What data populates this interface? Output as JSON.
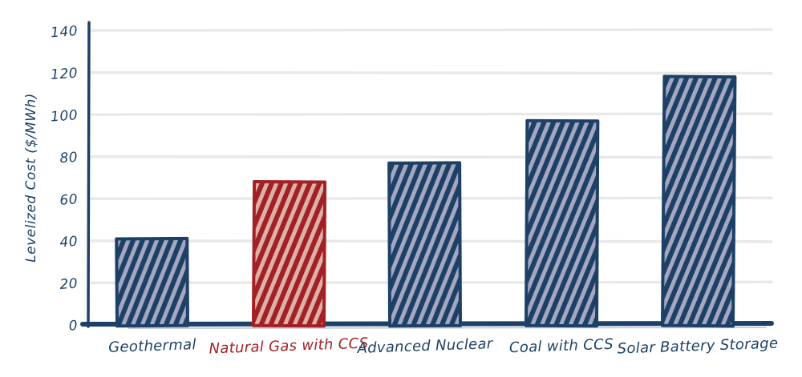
{
  "chart_data": {
    "type": "bar",
    "title": "",
    "xlabel": "",
    "ylabel": "Levelized Cost ($/MWh)",
    "ylim": [
      0,
      140
    ],
    "yticks": [
      0,
      20,
      40,
      60,
      80,
      100,
      120,
      140
    ],
    "grid": true,
    "legend": false,
    "style": "hand-drawn xkcd-like, diagonal-hatched bars",
    "categories": [
      "Geothermal",
      "Natural Gas with CCS",
      "Advanced Nuclear",
      "Coal with CCS",
      "Solar Battery Storage"
    ],
    "values": [
      41,
      68,
      77,
      97,
      118
    ],
    "bars": [
      {
        "label": "Geothermal",
        "value": 41,
        "color_key": "blue"
      },
      {
        "label": "Natural Gas with CCS",
        "value": 68,
        "color_key": "red"
      },
      {
        "label": "Advanced Nuclear",
        "value": 77,
        "color_key": "blue"
      },
      {
        "label": "Coal with CCS",
        "value": 97,
        "color_key": "blue"
      },
      {
        "label": "Solar Battery Storage",
        "value": 118,
        "color_key": "blue"
      }
    ],
    "highlight_category": "Natural Gas with CCS",
    "colors": {
      "blue_stroke": "#1d4166",
      "blue_hatch_fill": "#a5a7c1",
      "red_stroke": "#a32025",
      "red_hatch_fill": "#dcb2a8",
      "axis": "#1d4166",
      "axis_echo": "#9aa5b8",
      "gridline": "#e9e9e9",
      "tick_label": "#1d4166",
      "red_label": "#a32025",
      "background": "#ffffff"
    }
  }
}
